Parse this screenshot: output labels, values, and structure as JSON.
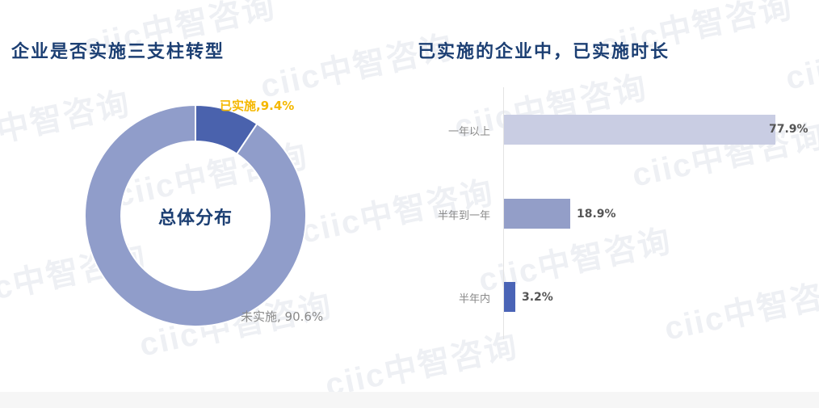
{
  "left_panel": {
    "title": "企业是否实施三支柱转型",
    "center_label": "总体分布",
    "slices": [
      {
        "label": "已实施,9.4%",
        "name": "已实施",
        "value": 9.4,
        "color": "#4a62ad",
        "label_color": "#f5b800"
      },
      {
        "label": "未实施, 90.6%",
        "name": "未实施",
        "value": 90.6,
        "color": "#909dca",
        "label_color": "#8a8a8a"
      }
    ]
  },
  "right_panel": {
    "title": "已实施的企业中，已实施时长",
    "bars": [
      {
        "category": "一年以上",
        "value": 77.9,
        "value_label": "77.9%",
        "color": "#c9cde3"
      },
      {
        "category": "半年到一年",
        "value": 18.9,
        "value_label": "18.9%",
        "color": "#939ec8"
      },
      {
        "category": "半年内",
        "value": 3.2,
        "value_label": "3.2%",
        "color": "#4a64b6"
      }
    ]
  },
  "watermark_text": "ciic中智咨询",
  "chart_data": [
    {
      "type": "pie",
      "title": "企业是否实施三支柱转型",
      "subtitle": "总体分布",
      "categories": [
        "已实施",
        "未实施"
      ],
      "values": [
        9.4,
        90.6
      ],
      "unit": "%",
      "donut": true
    },
    {
      "type": "bar",
      "orientation": "horizontal",
      "title": "已实施的企业中，已实施时长",
      "categories": [
        "一年以上",
        "半年到一年",
        "半年内"
      ],
      "values": [
        77.9,
        18.9,
        3.2
      ],
      "unit": "%",
      "xlabel": "",
      "ylabel": "",
      "grid": false
    }
  ]
}
